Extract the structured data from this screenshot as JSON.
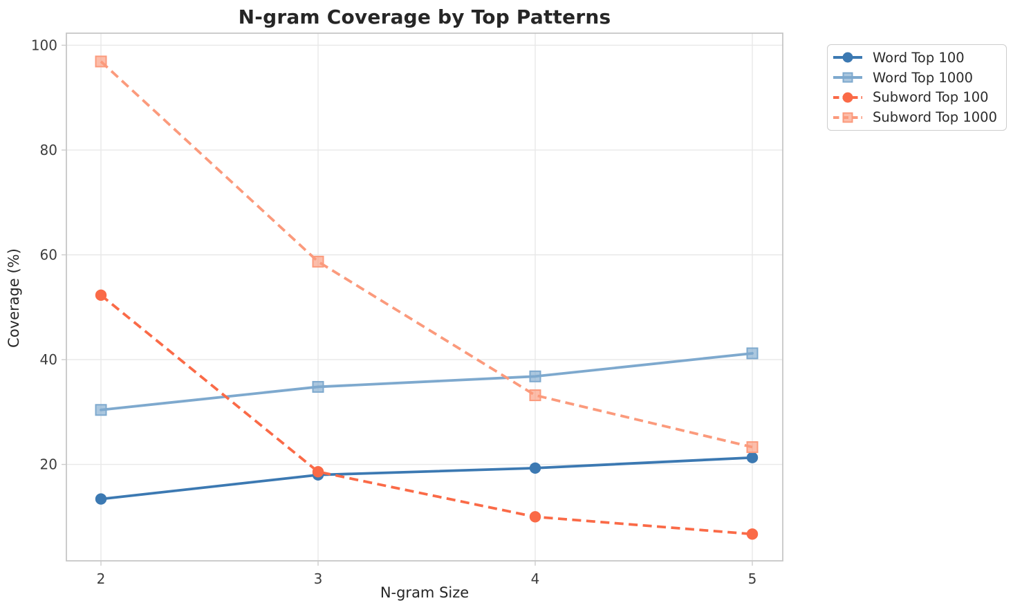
{
  "chart_data": {
    "type": "line",
    "title": "N-gram Coverage by Top Patterns",
    "xlabel": "N-gram Size",
    "ylabel": "Coverage (%)",
    "x": [
      2,
      3,
      4,
      5
    ],
    "xticks": [
      "2",
      "3",
      "4",
      "5"
    ],
    "yticks": [
      20,
      40,
      60,
      80,
      100
    ],
    "ylim": [
      1.6,
      102.3
    ],
    "grid": true,
    "legend_position": "outside-top-right",
    "series": [
      {
        "name": "Word Top 100",
        "values": [
          13.4,
          18.0,
          19.3,
          21.3
        ],
        "color": "#3c79b2",
        "style": "solid",
        "marker": "circle"
      },
      {
        "name": "Word Top 1000",
        "values": [
          30.4,
          34.8,
          36.8,
          41.2
        ],
        "color": "#7ea9ce",
        "style": "solid",
        "marker": "square"
      },
      {
        "name": "Subword Top 100",
        "values": [
          52.3,
          18.6,
          10.0,
          6.7
        ],
        "color": "#fa6a47",
        "style": "dashed",
        "marker": "circle"
      },
      {
        "name": "Subword Top 1000",
        "values": [
          96.9,
          58.7,
          33.2,
          23.3
        ],
        "color": "#fb9a7c",
        "style": "dashed",
        "marker": "square"
      }
    ],
    "colors": {
      "gridline": "#e8e8e8",
      "spine": "#c6c6c6",
      "tick": "#cccccc",
      "tick_label": "#3d3d3d",
      "title_text": "#262626"
    }
  }
}
